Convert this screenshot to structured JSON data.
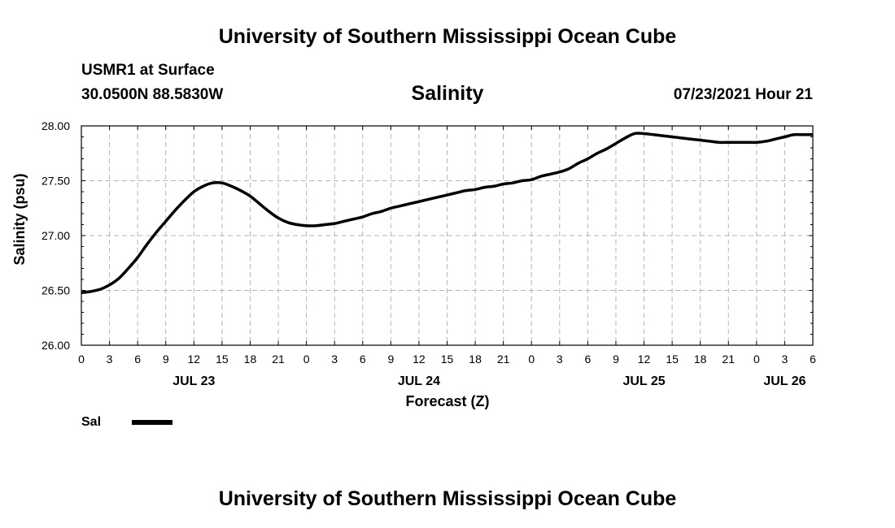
{
  "header": {
    "title_top": "University of Southern Mississippi Ocean Cube",
    "station": "USMR1 at Surface",
    "coords": "30.0500N  88.5830W",
    "variable": "Salinity",
    "datetime": "07/23/2021 Hour 21",
    "title_bottom": "University of Southern Mississippi Ocean Cube"
  },
  "colors": {
    "line": "#000000",
    "grid": "#b4b4b4",
    "axis": "#000000"
  },
  "chart_data": {
    "type": "line",
    "title": "Salinity",
    "xlabel": "Forecast (Z)",
    "ylabel": "Salinity (psu)",
    "x_unit": "forecast hours from Jul 23 00Z",
    "xlim": [
      0,
      78
    ],
    "ylim": [
      26.0,
      28.0
    ],
    "y_ticks": [
      "26.00",
      "26.50",
      "27.00",
      "27.50",
      "28.00"
    ],
    "y_tick_values": [
      26.0,
      26.5,
      27.0,
      27.5,
      28.0
    ],
    "x_tick_hours": [
      0,
      3,
      6,
      9,
      12,
      15,
      18,
      21,
      24,
      27,
      30,
      33,
      36,
      39,
      42,
      45,
      48,
      51,
      54,
      57,
      60,
      63,
      66,
      69,
      72,
      75,
      78
    ],
    "x_tick_labels": [
      "0",
      "3",
      "6",
      "9",
      "12",
      "15",
      "18",
      "21",
      "0",
      "3",
      "6",
      "9",
      "12",
      "15",
      "18",
      "21",
      "0",
      "3",
      "6",
      "9",
      "12",
      "15",
      "18",
      "21",
      "0",
      "3",
      "6"
    ],
    "day_labels": [
      {
        "label": "JUL 23",
        "hour": 12
      },
      {
        "label": "JUL 24",
        "hour": 36
      },
      {
        "label": "JUL 25",
        "hour": 60
      },
      {
        "label": "JUL 26",
        "hour": 75
      }
    ],
    "grid": true,
    "legend": [
      {
        "name": "Sal",
        "position": "bottom-left"
      }
    ],
    "series": [
      {
        "name": "Sal",
        "x": [
          0,
          1,
          2,
          3,
          4,
          5,
          6,
          7,
          8,
          9,
          10,
          11,
          12,
          13,
          14,
          15,
          16,
          17,
          18,
          19,
          20,
          21,
          22,
          23,
          24,
          25,
          26,
          27,
          28,
          29,
          30,
          31,
          32,
          33,
          34,
          35,
          36,
          37,
          38,
          39,
          40,
          41,
          42,
          43,
          44,
          45,
          46,
          47,
          48,
          49,
          50,
          51,
          52,
          53,
          54,
          55,
          56,
          57,
          58,
          59,
          60,
          61,
          62,
          63,
          64,
          65,
          66,
          67,
          68,
          69,
          70,
          71,
          72,
          73,
          74,
          75,
          76,
          77,
          78
        ],
        "values": [
          26.48,
          26.49,
          26.51,
          26.55,
          26.61,
          26.7,
          26.8,
          26.92,
          27.03,
          27.13,
          27.23,
          27.32,
          27.4,
          27.45,
          27.48,
          27.48,
          27.45,
          27.41,
          27.36,
          27.29,
          27.22,
          27.16,
          27.12,
          27.1,
          27.09,
          27.09,
          27.1,
          27.11,
          27.13,
          27.15,
          27.17,
          27.2,
          27.22,
          27.25,
          27.27,
          27.29,
          27.31,
          27.33,
          27.35,
          27.37,
          27.39,
          27.41,
          27.42,
          27.44,
          27.45,
          27.47,
          27.48,
          27.5,
          27.51,
          27.54,
          27.56,
          27.58,
          27.61,
          27.66,
          27.7,
          27.75,
          27.79,
          27.84,
          27.89,
          27.93,
          27.93,
          27.92,
          27.91,
          27.9,
          27.89,
          27.88,
          27.87,
          27.86,
          27.85,
          27.85,
          27.85,
          27.85,
          27.85,
          27.86,
          27.88,
          27.9,
          27.92,
          27.92,
          27.92
        ]
      }
    ]
  }
}
